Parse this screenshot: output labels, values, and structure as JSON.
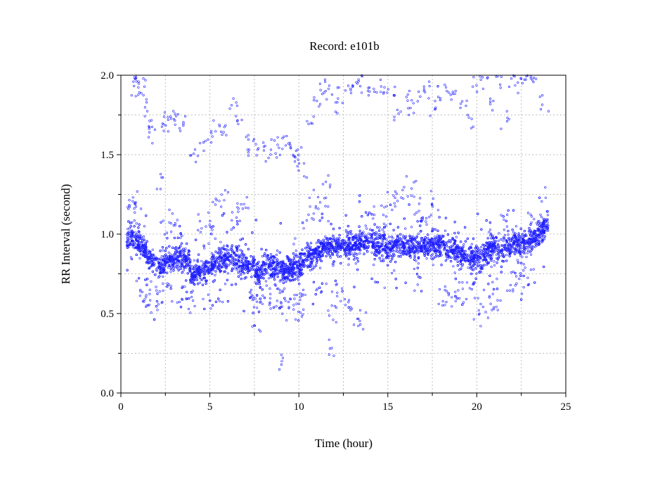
{
  "chart_data": {
    "type": "scatter",
    "title": "Record:  e101b",
    "xlabel": "Time (hour)",
    "ylabel": "RR Interval (second)",
    "xlim": [
      0,
      25
    ],
    "ylim": [
      0.0,
      2.0
    ],
    "xticks": [
      "0",
      "5",
      "10",
      "15",
      "20",
      "25"
    ],
    "yticks": [
      "0.0",
      "0.5",
      "1.0",
      "1.5",
      "2.0"
    ],
    "grid": true,
    "marker_color": "#2020ff",
    "band": {
      "x": [
        0.3,
        0.5,
        0.8,
        1.2,
        1.6,
        1.8,
        2.0,
        2.3,
        2.5,
        3.0,
        3.5,
        3.8,
        4.0,
        4.3,
        4.6,
        5.0,
        5.5,
        6.0,
        6.5,
        7.0,
        7.5,
        7.8,
        8.0,
        8.5,
        9.0,
        9.5,
        10.0,
        10.4,
        10.8,
        11.2,
        11.6,
        12.0,
        12.5,
        13.0,
        13.5,
        14.0,
        14.5,
        15.0,
        15.5,
        16.0,
        16.5,
        17.0,
        17.5,
        18.0,
        18.5,
        19.0,
        19.5,
        20.0,
        20.5,
        21.0,
        21.5,
        22.0,
        22.5,
        23.0,
        23.5,
        24.0
      ],
      "y": [
        0.95,
        1.0,
        0.97,
        0.92,
        0.86,
        0.84,
        0.82,
        0.8,
        0.83,
        0.84,
        0.85,
        0.84,
        0.73,
        0.76,
        0.78,
        0.8,
        0.84,
        0.86,
        0.83,
        0.8,
        0.79,
        0.74,
        0.78,
        0.79,
        0.77,
        0.78,
        0.79,
        0.84,
        0.86,
        0.9,
        0.92,
        0.93,
        0.94,
        0.92,
        0.94,
        0.95,
        0.93,
        0.92,
        0.94,
        0.93,
        0.92,
        0.92,
        0.93,
        0.93,
        0.9,
        0.88,
        0.86,
        0.84,
        0.88,
        0.91,
        0.92,
        0.93,
        0.94,
        0.95,
        1.0,
        1.07
      ],
      "spread": 0.04,
      "points": 9000
    },
    "outliers": {
      "x": [
        0.6,
        0.8,
        1.0,
        1.2,
        1.4,
        1.6,
        1.8,
        2.4,
        2.6,
        2.9,
        3.2,
        3.5,
        4.0,
        4.5,
        5.0,
        5.4,
        5.8,
        6.3,
        6.6,
        7.0,
        7.4,
        7.8,
        8.2,
        8.6,
        9.0,
        9.3,
        9.6,
        9.8,
        10.0,
        10.2,
        10.6,
        11.0,
        11.3,
        11.6,
        12.0,
        12.4,
        12.8,
        13.2,
        13.6,
        14.0,
        14.4,
        14.8,
        15.2,
        15.6,
        16.0,
        16.4,
        16.8,
        17.2,
        17.6,
        18.0,
        18.4,
        18.8,
        19.2,
        19.6,
        20.0,
        20.4,
        20.8,
        21.2,
        21.6,
        22.0,
        22.4,
        22.8,
        23.2,
        23.8,
        11.9,
        9.1,
        7.6,
        2.2
      ],
      "y": [
        1.99,
        1.93,
        1.92,
        1.93,
        1.8,
        1.66,
        1.62,
        1.72,
        1.7,
        1.75,
        1.72,
        1.7,
        1.5,
        1.55,
        1.63,
        1.7,
        1.67,
        1.8,
        1.75,
        1.57,
        1.55,
        1.52,
        1.5,
        1.55,
        1.52,
        1.6,
        1.55,
        1.45,
        1.5,
        1.4,
        1.7,
        1.85,
        1.92,
        1.9,
        1.82,
        1.88,
        1.93,
        1.98,
        1.95,
        1.9,
        1.88,
        1.92,
        1.89,
        1.75,
        1.85,
        1.8,
        1.88,
        1.9,
        1.8,
        1.88,
        1.92,
        1.9,
        1.85,
        1.7,
        1.95,
        1.96,
        1.82,
        1.98,
        1.72,
        1.98,
        1.92,
        2.0,
        1.98,
        1.82,
        0.29,
        0.2,
        0.43,
        1.33
      ],
      "secondary_y": [
        1.15,
        1.2,
        1.1,
        0.62,
        0.6,
        0.55,
        0.65,
        0.7,
        1.05,
        1.1,
        1.05,
        0.6,
        0.55,
        1.05,
        1.12,
        1.2,
        1.25,
        1.1,
        1.15,
        1.2,
        0.58,
        0.55,
        0.6,
        0.62,
        0.55,
        0.6,
        0.52,
        0.58,
        0.6,
        0.55,
        1.15,
        1.2,
        1.25,
        1.3,
        0.62,
        0.58,
        0.55,
        0.5,
        0.48,
        1.05,
        1.1,
        1.12,
        1.2,
        1.25,
        1.3,
        1.28,
        1.15,
        1.1,
        1.2,
        0.62,
        0.6,
        0.58,
        0.62,
        0.65,
        0.52,
        0.5,
        0.55,
        0.6,
        1.05,
        0.7,
        0.68,
        0.72,
        1.1,
        1.15,
        0.52,
        0.58,
        0.62,
        0.56
      ]
    }
  }
}
